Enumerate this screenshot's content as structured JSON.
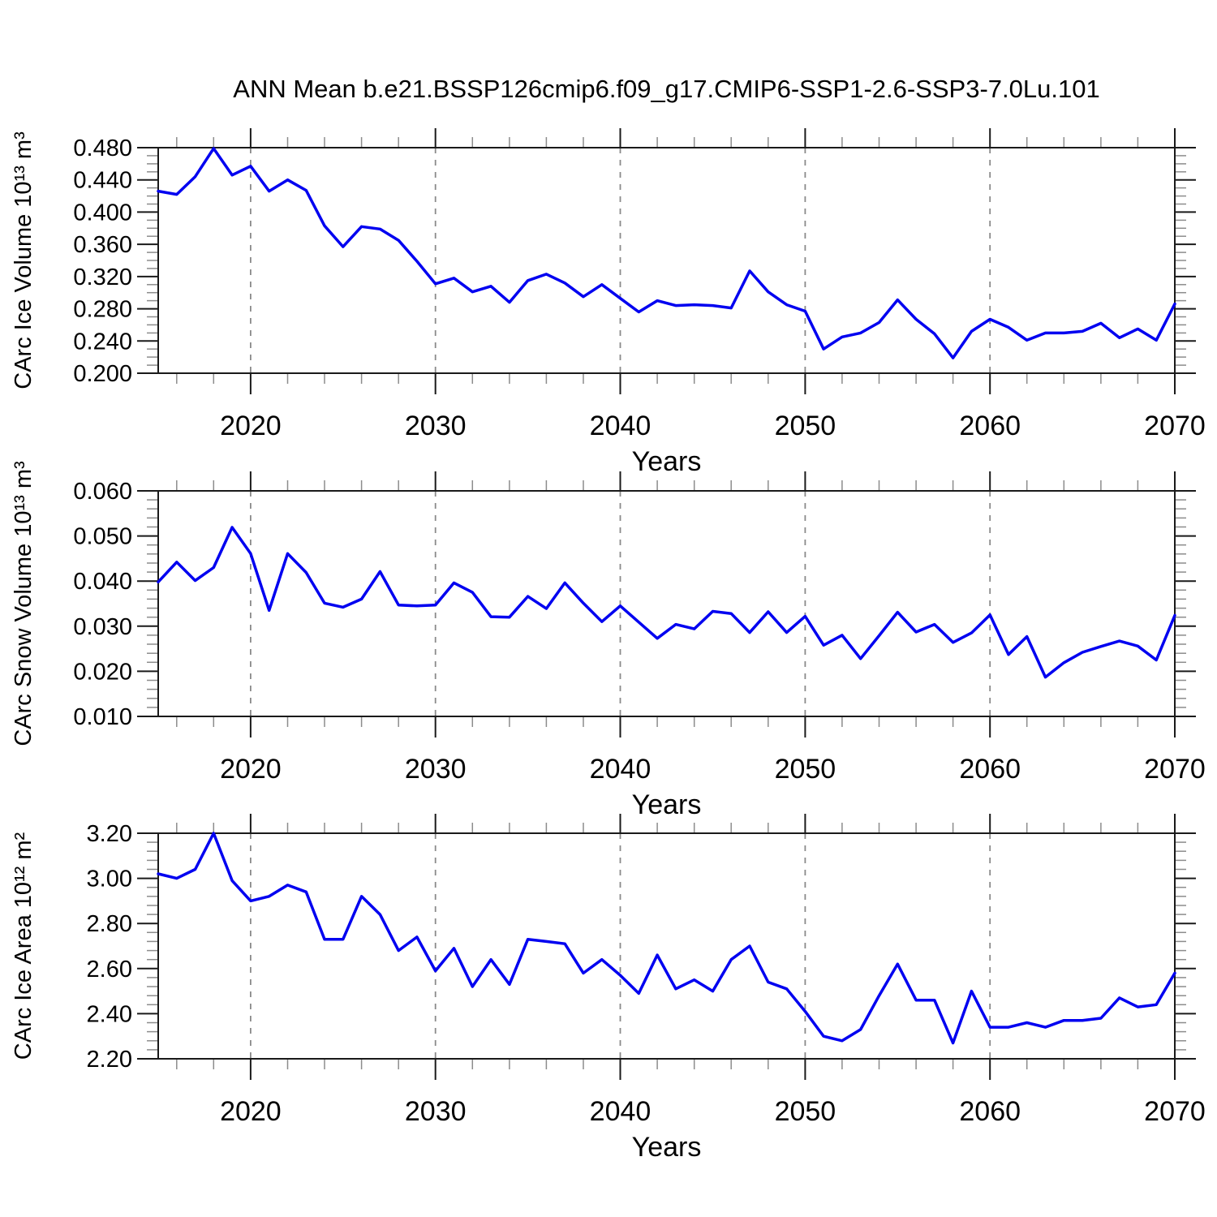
{
  "page": {
    "title": "ANN Mean b.e21.BSSP126cmip6.f09_g17.CMIP6-SSP1-2.6-SSP3-7.0Lu.101"
  },
  "colors": {
    "line": "#0000f0",
    "grid": "#8a8a8a",
    "axis": "#1a1a1a",
    "minor_tick": "#8c8c8c",
    "text": "#000000",
    "background": "#ffffff"
  },
  "chart_data": [
    {
      "id": "ice-volume",
      "type": "line",
      "title": "",
      "xlabel": "Years",
      "ylabel": "CArc Ice Volume 10¹³ m³",
      "xlim": [
        2015,
        2070
      ],
      "ylim": [
        0.2,
        0.48
      ],
      "xticks": [
        2020,
        2030,
        2040,
        2050,
        2060,
        2070
      ],
      "xminor_step": 2,
      "yticks": [
        0.2,
        0.24,
        0.28,
        0.32,
        0.36,
        0.4,
        0.44,
        0.48
      ],
      "ytick_labels": [
        "0.200",
        "0.240",
        "0.280",
        "0.320",
        "0.360",
        "0.400",
        "0.440",
        "0.480"
      ],
      "yminor_step": 0.01,
      "gridlines_x": [
        2020,
        2030,
        2040,
        2050,
        2060
      ],
      "grid": "vertical-dashed",
      "legend": "none",
      "years": [
        2015,
        2016,
        2017,
        2018,
        2019,
        2020,
        2021,
        2022,
        2023,
        2024,
        2025,
        2026,
        2027,
        2028,
        2029,
        2030,
        2031,
        2032,
        2033,
        2034,
        2035,
        2036,
        2037,
        2038,
        2039,
        2040,
        2041,
        2042,
        2043,
        2044,
        2045,
        2046,
        2047,
        2048,
        2049,
        2050,
        2051,
        2052,
        2053,
        2054,
        2055,
        2056,
        2057,
        2058,
        2059,
        2060,
        2061,
        2062,
        2063,
        2064,
        2065,
        2066,
        2067,
        2068,
        2069,
        2070
      ],
      "values": [
        0.426,
        0.422,
        0.444,
        0.479,
        0.446,
        0.457,
        0.426,
        0.44,
        0.427,
        0.383,
        0.357,
        0.382,
        0.379,
        0.365,
        0.339,
        0.311,
        0.318,
        0.301,
        0.308,
        0.288,
        0.315,
        0.323,
        0.312,
        0.295,
        0.31,
        0.293,
        0.276,
        0.29,
        0.284,
        0.285,
        0.284,
        0.281,
        0.327,
        0.301,
        0.285,
        0.277,
        0.23,
        0.245,
        0.25,
        0.263,
        0.291,
        0.267,
        0.249,
        0.219,
        0.252,
        0.267,
        0.257,
        0.241,
        0.25,
        0.25,
        0.252,
        0.262,
        0.244,
        0.255,
        0.241,
        0.286
      ]
    },
    {
      "id": "snow-volume",
      "type": "line",
      "title": "",
      "xlabel": "Years",
      "ylabel": "CArc Snow Volume 10¹³ m³",
      "xlim": [
        2015,
        2070
      ],
      "ylim": [
        0.01,
        0.06
      ],
      "xticks": [
        2020,
        2030,
        2040,
        2050,
        2060,
        2070
      ],
      "xminor_step": 2,
      "yticks": [
        0.01,
        0.02,
        0.03,
        0.04,
        0.05,
        0.06
      ],
      "ytick_labels": [
        "0.010",
        "0.020",
        "0.030",
        "0.040",
        "0.050",
        "0.060"
      ],
      "yminor_step": 0.002,
      "gridlines_x": [
        2020,
        2030,
        2040,
        2050,
        2060
      ],
      "grid": "vertical-dashed",
      "legend": "none",
      "years": [
        2015,
        2016,
        2017,
        2018,
        2019,
        2020,
        2021,
        2022,
        2023,
        2024,
        2025,
        2026,
        2027,
        2028,
        2029,
        2030,
        2031,
        2032,
        2033,
        2034,
        2035,
        2036,
        2037,
        2038,
        2039,
        2040,
        2041,
        2042,
        2043,
        2044,
        2045,
        2046,
        2047,
        2048,
        2049,
        2050,
        2051,
        2052,
        2053,
        2054,
        2055,
        2056,
        2057,
        2058,
        2059,
        2060,
        2061,
        2062,
        2063,
        2064,
        2065,
        2066,
        2067,
        2068,
        2069,
        2070
      ],
      "values": [
        0.0398,
        0.0442,
        0.0401,
        0.043,
        0.0519,
        0.0461,
        0.0335,
        0.0461,
        0.0419,
        0.0351,
        0.0342,
        0.036,
        0.0421,
        0.0347,
        0.0345,
        0.0347,
        0.0396,
        0.0375,
        0.0321,
        0.032,
        0.0366,
        0.0339,
        0.0396,
        0.0351,
        0.031,
        0.0345,
        0.0309,
        0.0273,
        0.0304,
        0.0294,
        0.0333,
        0.0328,
        0.0286,
        0.0332,
        0.0286,
        0.0322,
        0.0258,
        0.028,
        0.0228,
        0.0279,
        0.0331,
        0.0287,
        0.0304,
        0.0264,
        0.0285,
        0.0325,
        0.0237,
        0.0277,
        0.0187,
        0.0219,
        0.0242,
        0.0255,
        0.0267,
        0.0256,
        0.0225,
        0.0324
      ]
    },
    {
      "id": "ice-area",
      "type": "line",
      "title": "",
      "xlabel": "Years",
      "ylabel": "CArc Ice Area 10¹² m²",
      "xlim": [
        2015,
        2070
      ],
      "ylim": [
        2.2,
        3.2
      ],
      "xticks": [
        2020,
        2030,
        2040,
        2050,
        2060,
        2070
      ],
      "xminor_step": 2,
      "yticks": [
        2.2,
        2.4,
        2.6,
        2.8,
        3.0,
        3.2
      ],
      "ytick_labels": [
        "2.20",
        "2.40",
        "2.60",
        "2.80",
        "3.00",
        "3.20"
      ],
      "yminor_step": 0.04,
      "gridlines_x": [
        2020,
        2030,
        2040,
        2050,
        2060
      ],
      "grid": "vertical-dashed",
      "legend": "none",
      "years": [
        2015,
        2016,
        2017,
        2018,
        2019,
        2020,
        2021,
        2022,
        2023,
        2024,
        2025,
        2026,
        2027,
        2028,
        2029,
        2030,
        2031,
        2032,
        2033,
        2034,
        2035,
        2036,
        2037,
        2038,
        2039,
        2040,
        2041,
        2042,
        2043,
        2044,
        2045,
        2046,
        2047,
        2048,
        2049,
        2050,
        2051,
        2052,
        2053,
        2054,
        2055,
        2056,
        2057,
        2058,
        2059,
        2060,
        2061,
        2062,
        2063,
        2064,
        2065,
        2066,
        2067,
        2068,
        2069,
        2070
      ],
      "values": [
        3.02,
        3.0,
        3.04,
        3.2,
        2.99,
        2.9,
        2.92,
        2.97,
        2.94,
        2.73,
        2.73,
        2.92,
        2.84,
        2.68,
        2.74,
        2.59,
        2.69,
        2.52,
        2.64,
        2.53,
        2.73,
        2.72,
        2.71,
        2.58,
        2.64,
        2.57,
        2.49,
        2.66,
        2.51,
        2.55,
        2.5,
        2.64,
        2.7,
        2.54,
        2.51,
        2.41,
        2.3,
        2.28,
        2.33,
        2.48,
        2.62,
        2.46,
        2.46,
        2.27,
        2.5,
        2.34,
        2.34,
        2.36,
        2.34,
        2.37,
        2.37,
        2.38,
        2.47,
        2.43,
        2.44,
        2.58
      ]
    }
  ]
}
